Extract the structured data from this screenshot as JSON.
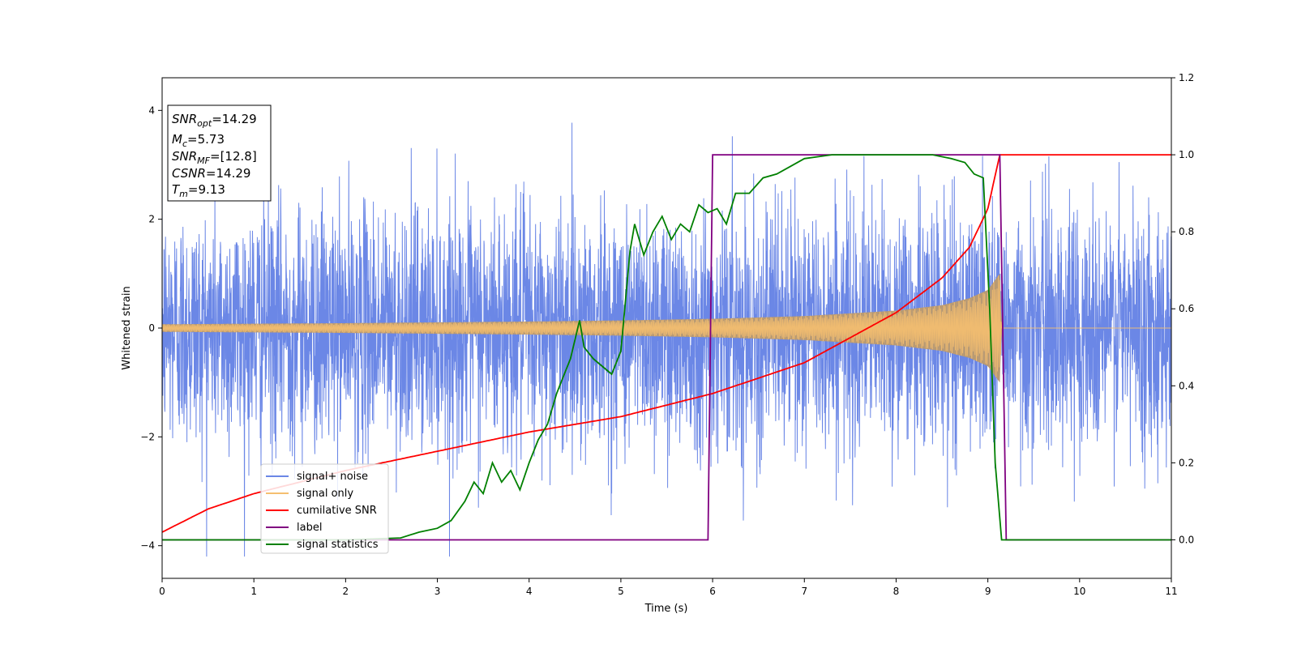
{
  "chart_data": {
    "type": "line",
    "xlabel": "Time (s)",
    "ylabel": "Whitened strain",
    "xlim": [
      0,
      11
    ],
    "ylim": [
      -4.6,
      4.6
    ],
    "y2lim": [
      -0.1,
      1.2
    ],
    "x_ticks": [
      "0",
      "1",
      "2",
      "3",
      "4",
      "5",
      "6",
      "7",
      "8",
      "9",
      "10",
      "11"
    ],
    "y_ticks": [
      "4",
      "2",
      "0",
      "−2",
      "−4"
    ],
    "y2_ticks": [
      "1.2",
      "1.0",
      "0.8",
      "0.6",
      "0.4",
      "0.2",
      "0.0"
    ],
    "grid": false,
    "legend_position": "lower-left",
    "colors": {
      "signal_noise": "#6b87e6",
      "signal_only": "#f5bf70",
      "signal_fill": "#b89a74",
      "cumulative_snr": "#ff0000",
      "label": "#800080",
      "signal_statistics": "#008000"
    },
    "info_box": {
      "line1_sym": "SNR",
      "line1_sub": "opt",
      "line1_val": "=14.29",
      "line2_sym": "M",
      "line2_sub": "c",
      "line2_val": "=5.73",
      "line3_sym": "SNR",
      "line3_sub": "MF",
      "line3_val": "=[12.8]",
      "line4_sym": "CSNR",
      "line4_val": "=14.29",
      "line5_sym": "T",
      "line5_sub": "m",
      "line5_val": "=9.13"
    },
    "series": [
      {
        "name": "signal+ noise",
        "axis": "left",
        "description_note": "whitened noise, roughly Gaussian, spanning about -4 to 4",
        "noise_std": 1.1,
        "x_range": [
          0,
          11
        ]
      },
      {
        "name": "signal only",
        "axis": "left",
        "envelope": {
          "x": [
            0,
            2,
            4,
            5,
            6,
            7,
            8,
            8.5,
            8.8,
            9.0,
            9.13,
            9.15,
            11
          ],
          "amp": [
            0.07,
            0.09,
            0.12,
            0.14,
            0.17,
            0.22,
            0.32,
            0.42,
            0.55,
            0.7,
            1.0,
            0,
            0
          ]
        }
      },
      {
        "name": "cumilative SNR",
        "axis": "right",
        "x": [
          0,
          0.5,
          1,
          2,
          3,
          4,
          5,
          6,
          7,
          8,
          8.5,
          8.8,
          9.0,
          9.13,
          11
        ],
        "y": [
          0.02,
          0.08,
          0.12,
          0.18,
          0.23,
          0.28,
          0.32,
          0.38,
          0.46,
          0.59,
          0.68,
          0.76,
          0.86,
          1.0,
          1.0
        ]
      },
      {
        "name": "label",
        "axis": "right",
        "x": [
          0,
          5.95,
          6.0,
          9.13,
          9.2,
          11
        ],
        "y": [
          0.0,
          0.0,
          1.0,
          1.0,
          0.0,
          0.0
        ]
      },
      {
        "name": "signal statistics",
        "axis": "right",
        "x": [
          0,
          0.3,
          1,
          2,
          2.6,
          2.8,
          3.0,
          3.15,
          3.3,
          3.4,
          3.5,
          3.6,
          3.7,
          3.8,
          3.9,
          4.0,
          4.1,
          4.2,
          4.3,
          4.35,
          4.45,
          4.55,
          4.6,
          4.7,
          4.8,
          4.9,
          5.0,
          5.1,
          5.15,
          5.25,
          5.35,
          5.45,
          5.55,
          5.65,
          5.75,
          5.85,
          5.95,
          6.05,
          6.15,
          6.25,
          6.4,
          6.55,
          6.7,
          6.85,
          7.0,
          7.3,
          7.6,
          7.9,
          8.2,
          8.4,
          8.6,
          8.75,
          8.85,
          8.95,
          9.02,
          9.08,
          9.15,
          9.2,
          11
        ],
        "y": [
          0.0,
          0.0,
          0.0,
          0.0,
          0.005,
          0.02,
          0.03,
          0.05,
          0.1,
          0.15,
          0.12,
          0.2,
          0.15,
          0.18,
          0.13,
          0.2,
          0.26,
          0.3,
          0.38,
          0.41,
          0.47,
          0.57,
          0.5,
          0.47,
          0.45,
          0.43,
          0.49,
          0.75,
          0.82,
          0.74,
          0.8,
          0.84,
          0.78,
          0.82,
          0.8,
          0.87,
          0.85,
          0.86,
          0.82,
          0.9,
          0.9,
          0.94,
          0.95,
          0.97,
          0.99,
          1.0,
          1.0,
          1.0,
          1.0,
          1.0,
          0.99,
          0.98,
          0.95,
          0.94,
          0.6,
          0.2,
          0.0,
          0.0,
          0.0
        ]
      }
    ]
  }
}
